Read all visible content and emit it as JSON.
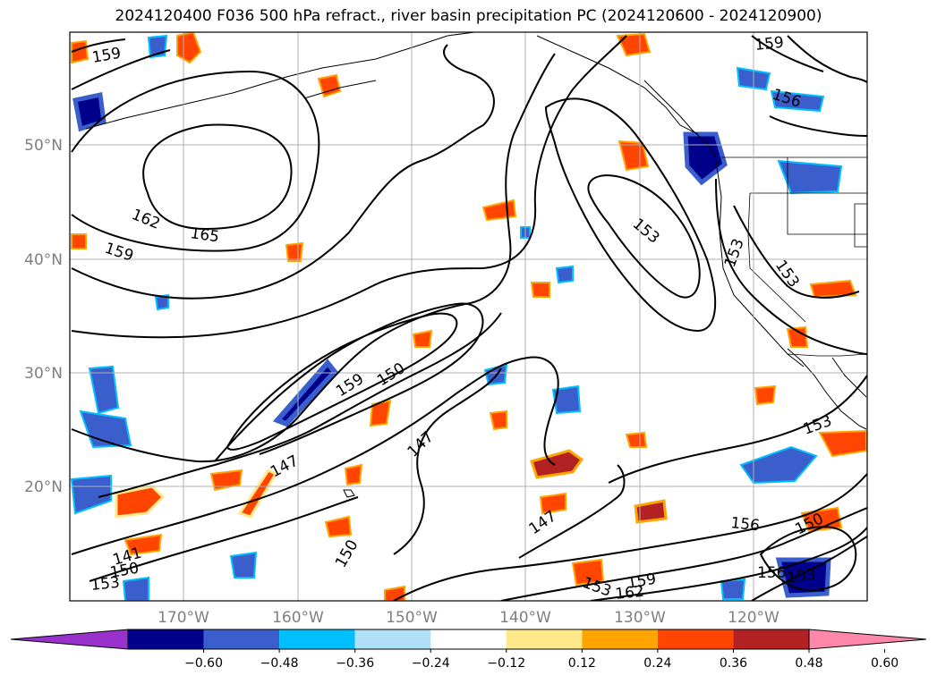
{
  "title": "2024120400 F036 500 hPa refract., river basin precipitation PC (2024120600 - 2024120900)",
  "lat_labels": [
    "50°N",
    "40°N",
    "30°N",
    "20°N"
  ],
  "lon_labels": [
    "170°W",
    "160°W",
    "150°W",
    "140°W",
    "130°W",
    "120°W"
  ],
  "contour_labels": [
    "159",
    "162",
    "165",
    "159",
    "153",
    "153",
    "153",
    "156",
    "159",
    "150",
    "159",
    "147",
    "147",
    "147",
    "150",
    "141",
    "150",
    "153",
    "153",
    "159",
    "162",
    "156",
    "150",
    "153",
    "156",
    "153"
  ],
  "colorbar": {
    "ticks": [
      "−0.60",
      "−0.48",
      "−0.36",
      "−0.24",
      "−0.12",
      "0.12",
      "0.24",
      "0.36",
      "0.48",
      "0.60"
    ],
    "colors": [
      "#9932cc",
      "#00008b",
      "#3a5fcd",
      "#00bfff",
      "#b0e0f8",
      "#ffffff",
      "#ffe88a",
      "#ffa500",
      "#ff4500",
      "#b22222",
      "#ff88aa"
    ]
  },
  "colors": {
    "frame": "#000000",
    "grid": "#b0b0b0",
    "axis_labels": "#7f7f7f"
  }
}
